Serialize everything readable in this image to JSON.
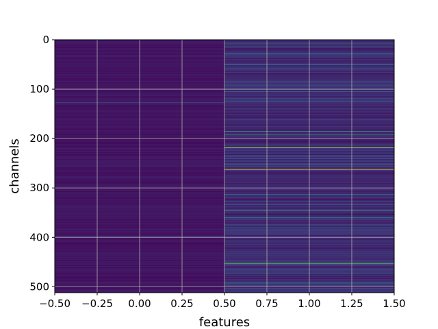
{
  "chart_data": {
    "type": "heatmap",
    "title": "",
    "xlabel": "features",
    "ylabel": "channels",
    "colormap": "viridis",
    "grid": true,
    "legend": "none",
    "n_rows": 512,
    "n_cols": 2,
    "xlim": [
      -0.5,
      1.5
    ],
    "ylim": [
      512,
      0
    ],
    "x_ticks": [
      -0.5,
      -0.25,
      0.0,
      0.25,
      0.5,
      0.75,
      1.0,
      1.25,
      1.5
    ],
    "x_tick_labels": [
      "−0.50",
      "−0.25",
      "0.00",
      "0.25",
      "0.50",
      "0.75",
      "1.00",
      "1.25",
      "1.50"
    ],
    "y_ticks": [
      0,
      100,
      200,
      300,
      400,
      500
    ],
    "y_tick_labels": [
      "0",
      "100",
      "200",
      "300",
      "400",
      "500"
    ],
    "column_baseline": [
      0.06,
      0.12
    ],
    "highlight_rows": [
      {
        "row": 14,
        "col": 1,
        "value": 0.45
      },
      {
        "row": 27,
        "col": 1,
        "value": 0.5
      },
      {
        "row": 50,
        "col": 1,
        "value": 0.45
      },
      {
        "row": 85,
        "col": 1,
        "value": 0.4
      },
      {
        "row": 127,
        "col": 0,
        "value": 0.3
      },
      {
        "row": 185,
        "col": 1,
        "value": 0.6
      },
      {
        "row": 192,
        "col": 1,
        "value": 0.55
      },
      {
        "row": 218,
        "col": 1,
        "value": 0.85
      },
      {
        "row": 262,
        "col": 1,
        "value": 0.95
      },
      {
        "row": 345,
        "col": 1,
        "value": 0.6
      },
      {
        "row": 360,
        "col": 1,
        "value": 0.5
      },
      {
        "row": 398,
        "col": 0,
        "value": 0.25
      },
      {
        "row": 453,
        "col": 1,
        "value": 0.8
      },
      {
        "row": 492,
        "col": 1,
        "value": 0.5
      }
    ],
    "colors": {
      "grid": "#b0b0b0",
      "axis": "#000000",
      "background": "#ffffff"
    }
  }
}
